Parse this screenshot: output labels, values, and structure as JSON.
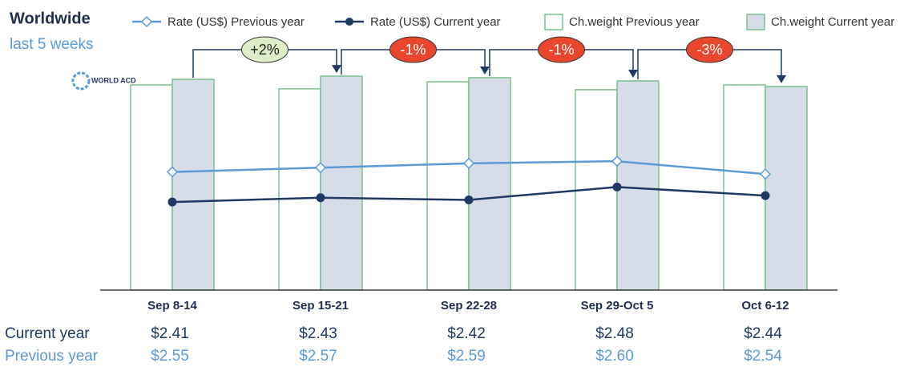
{
  "chart_data": {
    "type": "bar-line",
    "title": "Worldwide",
    "subtitle": "last 5 weeks",
    "logo": "WORLD ACD",
    "categories": [
      "Sep 8-14",
      "Sep 15-21",
      "Sep 22-28",
      "Sep 29-Oct 5",
      "Oct 6-12"
    ],
    "ylim": [
      0,
      100
    ],
    "y2lim": [
      2.0,
      3.0
    ],
    "series": [
      {
        "name": "Ch.weight Previous year",
        "type": "bar",
        "color": "#ffffff",
        "stroke": "#7cc08e",
        "values": [
          95.5,
          93.7,
          97.0,
          93.3,
          95.5
        ]
      },
      {
        "name": "Ch.weight Current year",
        "type": "bar",
        "color": "#d7dde8",
        "stroke": "#7cc08e",
        "values": [
          98.1,
          99.6,
          98.9,
          97.4,
          94.8
        ]
      },
      {
        "name": "Rate (US$) Previous year",
        "type": "line",
        "axis": "y2",
        "color": "#5b9bd5",
        "marker": "diamond",
        "row_label": "Previous year",
        "values": [
          2.55,
          2.57,
          2.59,
          2.6,
          2.54
        ],
        "value_labels": [
          "$2.55",
          "$2.57",
          "$2.59",
          "$2.60",
          "$2.54"
        ]
      },
      {
        "name": "Rate (US$) Current year",
        "type": "line",
        "axis": "y2",
        "color": "#1f3864",
        "marker": "circle",
        "row_label": "Current year",
        "values": [
          2.41,
          2.43,
          2.42,
          2.48,
          2.44
        ],
        "value_labels": [
          "$2.41",
          "$2.43",
          "$2.42",
          "$2.48",
          "$2.44"
        ]
      }
    ],
    "annotations": [
      {
        "label": "+2%",
        "color": "#dcedc8"
      },
      {
        "label": "-1%",
        "color": "#e8472e"
      },
      {
        "label": "-1%",
        "color": "#e8472e"
      },
      {
        "label": "-3%",
        "color": "#e8472e"
      }
    ]
  }
}
